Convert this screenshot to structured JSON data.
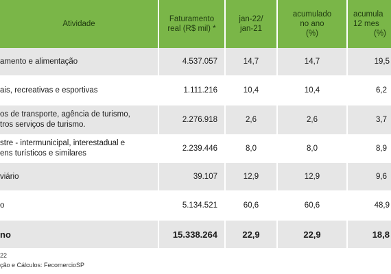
{
  "header": {
    "atividade": "Atividade",
    "faturamento_line1": "Faturamento",
    "faturamento_line2": "real (R$ mil) *",
    "jan_line1": "jan-22/",
    "jan_line2": "jan-21",
    "acum_ano_line1": "acumulado",
    "acum_ano_line2": "no ano",
    "acum_ano_line3": "(%)",
    "acum_12_line1": "acumula",
    "acum_12_line2": "12 mes",
    "acum_12_line3": "(%)"
  },
  "rows": [
    {
      "label1": "amento e alimentação",
      "label2": "",
      "faturamento": "4.537.057",
      "jan": "14,7",
      "acum_ano": "14,7",
      "acum_12": "19,5"
    },
    {
      "label1": "ais, recreativas e esportivas",
      "label2": "",
      "faturamento": "1.111.216",
      "jan": "10,4",
      "acum_ano": "10,4",
      "acum_12": "6,2"
    },
    {
      "label1": "os de transporte, agência de turismo,",
      "label2": "tros serviços de turismo.",
      "faturamento": "2.276.918",
      "jan": "2,6",
      "acum_ano": "2,6",
      "acum_12": "3,7"
    },
    {
      "label1": "stre - intermunicipal, interestadual e",
      "label2": "ens turísticos e similares",
      "faturamento": "2.239.446",
      "jan": "8,0",
      "acum_ano": "8,0",
      "acum_12": "8,9"
    },
    {
      "label1": "viário",
      "label2": "",
      "faturamento": "39.107",
      "jan": "12,9",
      "acum_ano": "12,9",
      "acum_12": "9,6"
    },
    {
      "label1": "o",
      "label2": "",
      "faturamento": "5.134.521",
      "jan": "60,6",
      "acum_ano": "60,6",
      "acum_12": "48,9"
    }
  ],
  "total": {
    "label": "no",
    "faturamento": "15.338.264",
    "jan": "22,9",
    "acum_ano": "22,9",
    "acum_12": "18,8"
  },
  "footnotes": {
    "line1": "22",
    "line2": "ção e Cálculos: FecomercioSP"
  },
  "colors": {
    "header_bg": "#7ab648",
    "row_bg": "#e6e6e6"
  }
}
